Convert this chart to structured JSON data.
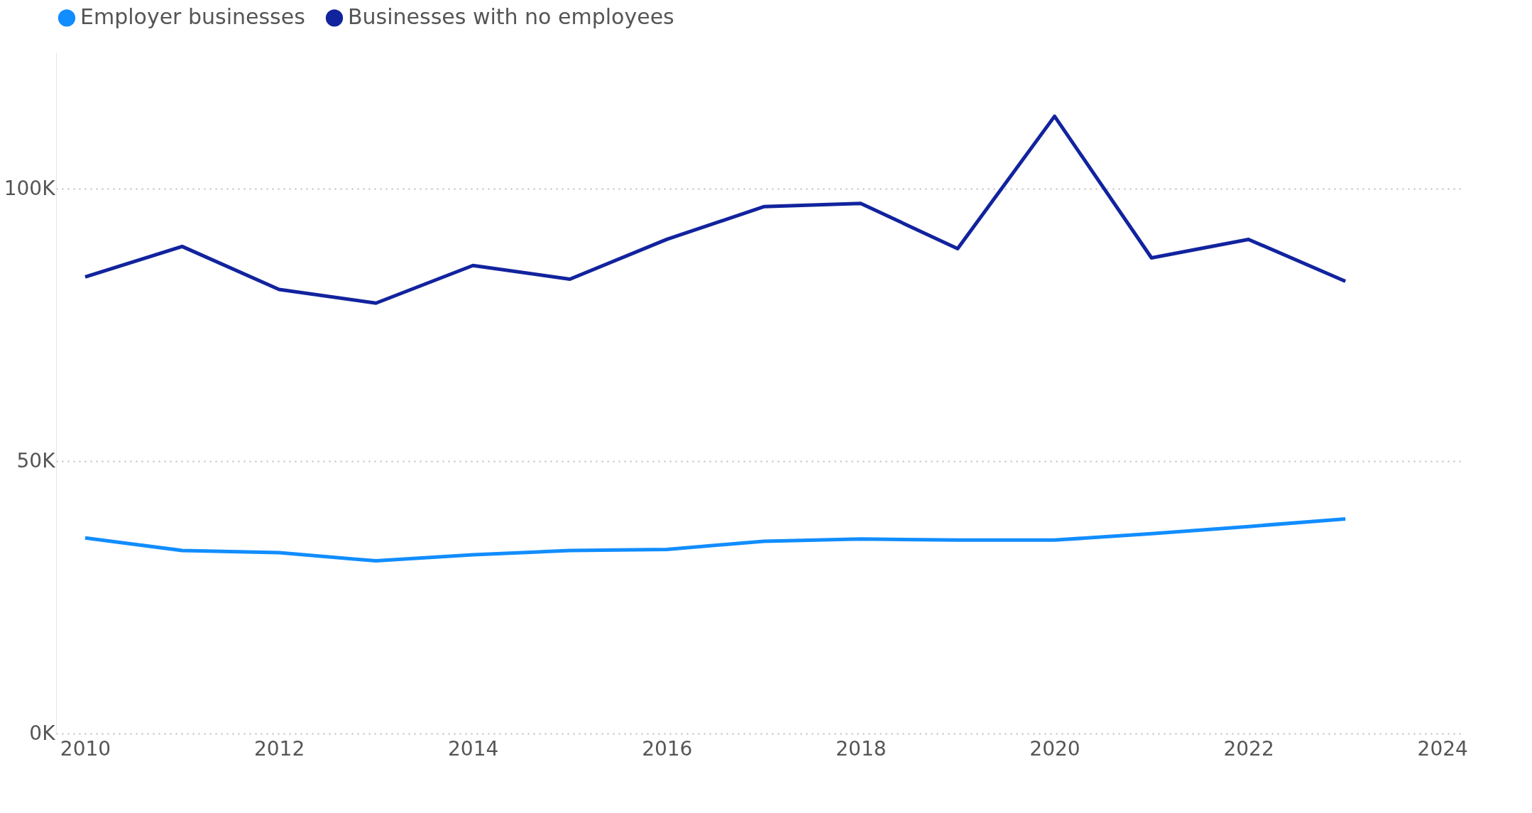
{
  "chart_data": {
    "type": "line",
    "x": [
      2010,
      2011,
      2012,
      2013,
      2014,
      2015,
      2016,
      2017,
      2018,
      2019,
      2020,
      2021,
      2022,
      2023
    ],
    "series": [
      {
        "name": "Employer businesses",
        "color": "#118dff",
        "values": [
          35900,
          33600,
          33200,
          31700,
          32800,
          33600,
          33800,
          35300,
          35700,
          35500,
          35500,
          36700,
          38000,
          39400
        ]
      },
      {
        "name": "Businesses with no employees",
        "color": "#12239e",
        "values": [
          83800,
          89400,
          81500,
          79000,
          85900,
          83400,
          90700,
          96700,
          97300,
          89000,
          113300,
          87300,
          90700,
          83000
        ]
      }
    ],
    "xlim": [
      2009.7,
      2024.2
    ],
    "xticks": [
      2010,
      2012,
      2014,
      2016,
      2018,
      2020,
      2022,
      2024
    ],
    "ylim": [
      0,
      125000
    ],
    "yticks": [
      {
        "value": 0,
        "label": "0K"
      },
      {
        "value": 50000,
        "label": "50K"
      },
      {
        "value": 100000,
        "label": "100K"
      }
    ],
    "grid": "y",
    "legend": "top left",
    "marker": "none",
    "line_style": "solid"
  }
}
